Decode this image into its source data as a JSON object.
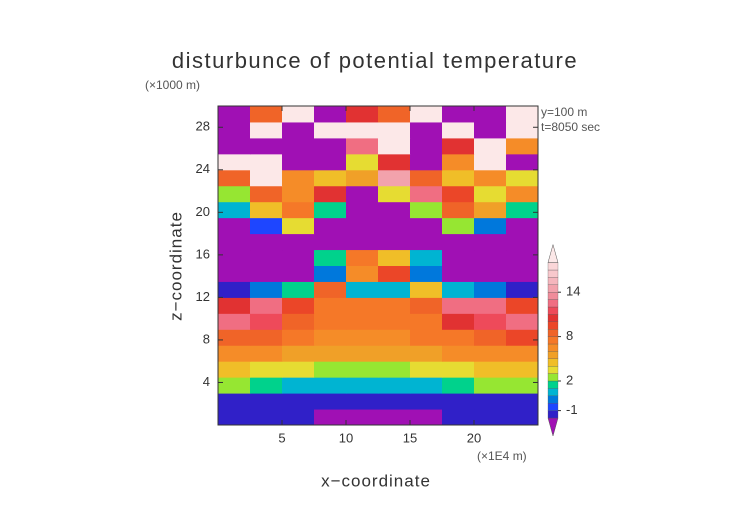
{
  "chart_data": {
    "type": "contourf",
    "title": "disturbunce of potential temperature",
    "y_unit": "(×1000 m)",
    "x_unit": "(×1E4 m)",
    "annotations": [
      "y=100 m",
      "t=8050 sec"
    ],
    "x_label": "x−coordinate",
    "y_label": "z−coordinate",
    "xlim": [
      0,
      25
    ],
    "ylim": [
      0,
      30
    ],
    "xticks": [
      5,
      10,
      15,
      20
    ],
    "yticks": [
      4,
      8,
      12,
      16,
      20,
      24,
      28
    ],
    "x_edges": [
      0,
      2.5,
      5,
      7.5,
      10,
      12.5,
      15,
      17.5,
      20,
      22.5,
      25
    ],
    "y_edges": [
      0,
      1.5,
      3,
      4.5,
      6,
      7.5,
      9,
      10.5,
      12,
      13.5,
      15,
      16.5,
      18,
      19.5,
      21,
      22.5,
      24,
      25.5,
      27,
      28.5,
      30
    ],
    "z": [
      [
        -1.5,
        -1.5,
        -1.5,
        -3,
        -3,
        -3,
        -3,
        -1.5,
        -1.5,
        -1.5
      ],
      [
        -1.2,
        -1.2,
        -1.2,
        -1.2,
        -1.2,
        -1.2,
        -1.2,
        -1.2,
        -1.2,
        -1.2
      ],
      [
        2.5,
        1.5,
        0.5,
        0.5,
        0.5,
        0.5,
        0.5,
        1,
        2,
        2.5
      ],
      [
        4,
        3.5,
        3,
        2.5,
        2.5,
        2.5,
        3,
        3.5,
        4,
        4.5
      ],
      [
        6.5,
        6,
        5,
        5,
        5,
        5,
        5,
        6,
        6.5,
        6.5
      ],
      [
        8.5,
        8,
        7,
        6.5,
        6.5,
        6.5,
        7,
        7.5,
        8.5,
        9
      ],
      [
        12,
        11,
        8.5,
        7.5,
        7.5,
        7.5,
        7.5,
        10,
        11,
        12
      ],
      [
        10,
        12,
        9,
        7.5,
        7.5,
        7.5,
        8,
        12,
        12,
        9
      ],
      [
        -2,
        -0.5,
        1,
        8,
        0,
        0,
        4,
        0.5,
        -0.5,
        -2
      ],
      [
        -2.5,
        -2.5,
        -2.5,
        -0.5,
        6,
        9,
        -0.5,
        -2.5,
        -2.5,
        -2.5
      ],
      [
        -2.5,
        -2.5,
        -2.5,
        1,
        7,
        4,
        0,
        -2.5,
        -2.5,
        -2.5
      ],
      [
        -2.5,
        -2.5,
        -2.5,
        -2.5,
        -2.5,
        -2.5,
        -2.5,
        -2.5,
        -2.5,
        -2.5
      ],
      [
        -2.5,
        -1,
        3,
        -2.5,
        -2.5,
        -2.5,
        -2.5,
        2,
        -0.5,
        -2.5
      ],
      [
        0,
        4,
        7,
        1,
        -2.5,
        -2.5,
        2,
        8,
        5,
        1
      ],
      [
        2,
        8,
        6,
        10,
        -2.5,
        3,
        12,
        9,
        3,
        6
      ],
      [
        8,
        19,
        6,
        4,
        5,
        14,
        8,
        4,
        6,
        3
      ],
      [
        19,
        19,
        -2.5,
        -2.5,
        3,
        10,
        -2.5,
        6,
        19,
        -2.5
      ],
      [
        -2.5,
        -2.5,
        -2.5,
        -2.5,
        12,
        19,
        -2.5,
        10,
        19,
        6
      ],
      [
        -2.5,
        19,
        -2.5,
        19,
        19,
        19,
        -2.5,
        19,
        -2.5,
        19
      ],
      [
        -2.5,
        8,
        19,
        -2.5,
        10,
        8,
        19,
        -2.5,
        -2.5,
        19
      ]
    ],
    "colorbar": {
      "levels": [
        -2,
        -1,
        -0.5,
        0,
        1,
        2,
        3,
        4,
        5,
        6,
        7,
        8,
        9,
        10,
        11,
        12,
        13,
        14,
        15,
        16,
        17,
        18
      ],
      "colors": [
        "#a010b4",
        "#3020c8",
        "#1e46ff",
        "#0078dc",
        "#00b4d2",
        "#00d28c",
        "#96e632",
        "#e6dc32",
        "#f0be28",
        "#f0a028",
        "#f58c28",
        "#f57828",
        "#f06428",
        "#eb4628",
        "#e13232",
        "#ee4a5a",
        "#f06e82",
        "#f08c9a",
        "#f2a2ac",
        "#f5b6bd",
        "#f8c8cc",
        "#fad6d8",
        "#fce8e8"
      ],
      "ticks": [
        -1,
        2,
        8,
        14
      ]
    }
  }
}
